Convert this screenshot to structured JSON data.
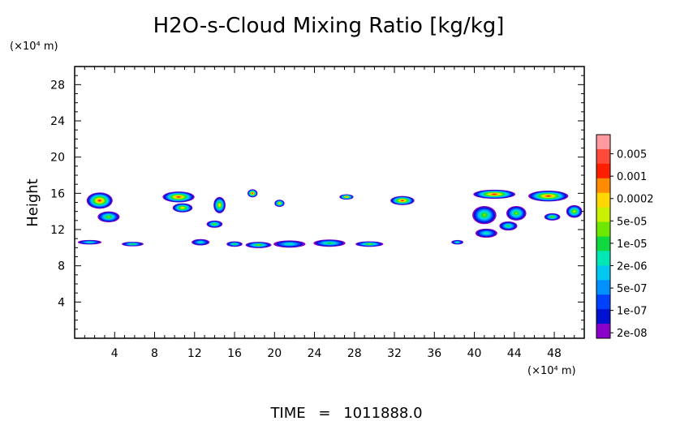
{
  "chart_data": {
    "type": "heatmap",
    "title": "H2O-s-Cloud Mixing Ratio [kg/kg]",
    "ylabel": "Height",
    "yunit": "(×10⁴ m)",
    "xunit": "(×10⁴ m)",
    "xlim": [
      0,
      51
    ],
    "ylim": [
      0,
      30
    ],
    "xticks": [
      "4",
      "8",
      "12",
      "16",
      "20",
      "24",
      "28",
      "32",
      "36",
      "40",
      "44",
      "48"
    ],
    "yticks": [
      "4",
      "8",
      "12",
      "16",
      "20",
      "24",
      "28"
    ],
    "xtick_values": [
      4,
      8,
      12,
      16,
      20,
      24,
      28,
      32,
      36,
      40,
      44,
      48
    ],
    "ytick_values": [
      4,
      8,
      12,
      16,
      20,
      24,
      28
    ],
    "colorbar_labels": [
      "0.005",
      "0.001",
      "0.0002",
      "5e-05",
      "1e-05",
      "2e-06",
      "5e-07",
      "1e-07",
      "2e-08"
    ],
    "colorbar_colors": [
      "#ff9aa0",
      "#ff4a3a",
      "#ff1e00",
      "#ff8c00",
      "#ffd700",
      "#c8f000",
      "#6ee800",
      "#10d840",
      "#00e6b4",
      "#00c8f0",
      "#0090ff",
      "#0040ff",
      "#0010d0",
      "#8a00c8"
    ],
    "features": [
      {
        "x": 2.5,
        "y": 15.2,
        "w": 2.6,
        "h": 1.8,
        "level": 2
      },
      {
        "x": 3.4,
        "y": 13.4,
        "w": 2.2,
        "h": 1.2,
        "level": 6
      },
      {
        "x": 1.5,
        "y": 10.6,
        "w": 2.4,
        "h": 0.5,
        "level": 8
      },
      {
        "x": 5.8,
        "y": 10.4,
        "w": 2.2,
        "h": 0.5,
        "level": 7
      },
      {
        "x": 10.4,
        "y": 15.6,
        "w": 3.2,
        "h": 1.2,
        "level": 2
      },
      {
        "x": 10.8,
        "y": 14.4,
        "w": 2.0,
        "h": 1.0,
        "level": 4
      },
      {
        "x": 14.5,
        "y": 14.7,
        "w": 1.2,
        "h": 1.8,
        "level": 4
      },
      {
        "x": 14.0,
        "y": 12.6,
        "w": 1.6,
        "h": 0.8,
        "level": 6
      },
      {
        "x": 17.8,
        "y": 16.0,
        "w": 1.0,
        "h": 0.9,
        "level": 2
      },
      {
        "x": 20.5,
        "y": 14.9,
        "w": 1.0,
        "h": 0.8,
        "level": 4
      },
      {
        "x": 27.2,
        "y": 15.6,
        "w": 1.4,
        "h": 0.6,
        "level": 3
      },
      {
        "x": 32.8,
        "y": 15.2,
        "w": 2.4,
        "h": 1.0,
        "level": 2
      },
      {
        "x": 12.6,
        "y": 10.6,
        "w": 1.8,
        "h": 0.7,
        "level": 8
      },
      {
        "x": 16.0,
        "y": 10.4,
        "w": 1.6,
        "h": 0.6,
        "level": 7
      },
      {
        "x": 18.4,
        "y": 10.3,
        "w": 2.6,
        "h": 0.7,
        "level": 6
      },
      {
        "x": 21.5,
        "y": 10.4,
        "w": 3.2,
        "h": 0.8,
        "level": 8
      },
      {
        "x": 25.5,
        "y": 10.5,
        "w": 3.2,
        "h": 0.8,
        "level": 7
      },
      {
        "x": 29.5,
        "y": 10.4,
        "w": 2.8,
        "h": 0.6,
        "level": 6
      },
      {
        "x": 38.3,
        "y": 10.6,
        "w": 1.2,
        "h": 0.5,
        "level": 8
      },
      {
        "x": 42.0,
        "y": 15.9,
        "w": 4.2,
        "h": 1.0,
        "level": 2
      },
      {
        "x": 47.4,
        "y": 15.7,
        "w": 4.0,
        "h": 1.2,
        "level": 2
      },
      {
        "x": 41.0,
        "y": 13.6,
        "w": 2.4,
        "h": 2.0,
        "level": 6
      },
      {
        "x": 41.2,
        "y": 11.6,
        "w": 2.2,
        "h": 1.0,
        "level": 8
      },
      {
        "x": 44.2,
        "y": 13.8,
        "w": 2.0,
        "h": 1.6,
        "level": 6
      },
      {
        "x": 43.4,
        "y": 12.4,
        "w": 1.8,
        "h": 1.0,
        "level": 7
      },
      {
        "x": 47.8,
        "y": 13.4,
        "w": 1.6,
        "h": 0.8,
        "level": 6
      },
      {
        "x": 50.0,
        "y": 14.0,
        "w": 1.6,
        "h": 1.4,
        "level": 5
      }
    ]
  },
  "footer": {
    "time_label": "TIME",
    "time_sep": "=",
    "time_value": "1011888.0"
  }
}
